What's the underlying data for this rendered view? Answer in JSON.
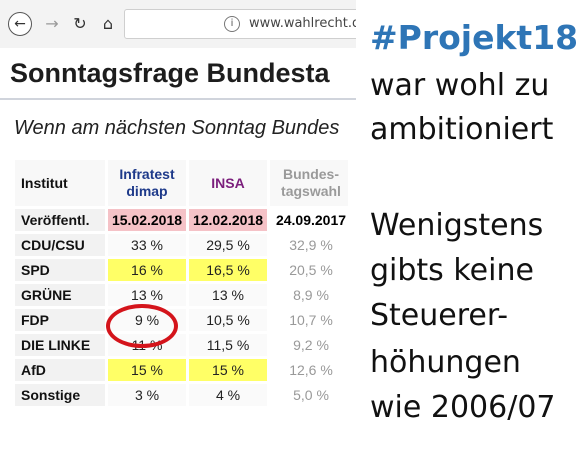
{
  "browser": {
    "url": "www.wahlrecht.de",
    "back_icon": "←",
    "forward_icon": "→",
    "reload_icon": "↻",
    "home_icon": "⌂",
    "info_icon": "i"
  },
  "page": {
    "heading": "Sonntagsfrage Bundesta",
    "subtitle": "Wenn am nächsten Sonntag Bundes"
  },
  "table": {
    "header": {
      "label": "Institut",
      "col1_line1": "Infratest",
      "col1_line2": "dimap",
      "col2": "INSA",
      "col3_line1": "Bundes-",
      "col3_line2": "tagswahl"
    },
    "date_row": {
      "label": "Veröffentl.",
      "col1": "15.02.2018",
      "col2": "12.02.2018",
      "col3": "24.09.2017"
    },
    "rows": [
      {
        "label": "CDU/CSU",
        "col1": "33 %",
        "col2": "29,5 %",
        "col3": "32,9 %"
      },
      {
        "label": "SPD",
        "col1": "16 %",
        "col2": "16,5 %",
        "col3": "20,5 %"
      },
      {
        "label": "GRÜNE",
        "col1": "13 %",
        "col2": "13 %",
        "col3": "8,9 %"
      },
      {
        "label": "FDP",
        "col1": "9 %",
        "col2": "10,5 %",
        "col3": "10,7 %"
      },
      {
        "label": "DIE LINKE",
        "col1": "11 %",
        "col2": "11,5 %",
        "col3": "9,2 %"
      },
      {
        "label": "AfD",
        "col1": "15 %",
        "col2": "15 %",
        "col3": "12,6 %"
      },
      {
        "label": "Sonstige",
        "col1": "3 %",
        "col2": "4 %",
        "col3": "5,0 %"
      }
    ],
    "highlight_color": "#ffff66",
    "date_highlight_color": "#f5c2c7",
    "circle_color": "#d4141b"
  },
  "caption": {
    "hashtag": "#Projekt18",
    "lines": [
      "war wohl zu",
      "ambitioniert",
      "",
      "Wenigstens",
      "gibts keine",
      "Steuerer-",
      "höhungen",
      "wie 2006/07"
    ],
    "hashtag_color": "#2e75b6"
  }
}
